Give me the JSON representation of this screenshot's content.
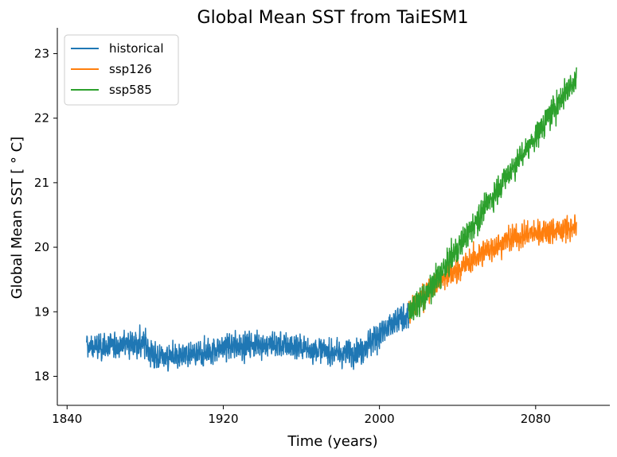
{
  "chart_data": {
    "type": "line",
    "title": "Global Mean SST from TaiESM1",
    "xlabel": "Time (years)",
    "ylabel": "Global Mean SST [$^\\circ$C]",
    "ylabel_display": "Global Mean SST [ ° C]",
    "xlim": [
      1835,
      2118
    ],
    "ylim": [
      17.55,
      23.4
    ],
    "xticks": [
      1840,
      1920,
      2000,
      2080
    ],
    "yticks": [
      18,
      19,
      20,
      21,
      22,
      23
    ],
    "grid": false,
    "legend_position": "top-left",
    "series": [
      {
        "name": "historical",
        "color": "#1f77b4",
        "x_start": 1850,
        "x_end": 2014,
        "anchors": [
          [
            1850,
            18.45
          ],
          [
            1860,
            18.45
          ],
          [
            1870,
            18.5
          ],
          [
            1880,
            18.5
          ],
          [
            1885,
            18.3
          ],
          [
            1900,
            18.3
          ],
          [
            1910,
            18.35
          ],
          [
            1920,
            18.45
          ],
          [
            1940,
            18.5
          ],
          [
            1960,
            18.45
          ],
          [
            1980,
            18.35
          ],
          [
            1990,
            18.4
          ],
          [
            2000,
            18.65
          ],
          [
            2014,
            18.95
          ]
        ],
        "amplitude": 0.18,
        "range": [
          17.82,
          19.25
        ]
      },
      {
        "name": "ssp126",
        "color": "#ff7f0e",
        "x_start": 2015,
        "x_end": 2100,
        "anchors": [
          [
            2015,
            18.95
          ],
          [
            2025,
            19.35
          ],
          [
            2035,
            19.55
          ],
          [
            2045,
            19.75
          ],
          [
            2055,
            19.95
          ],
          [
            2065,
            20.1
          ],
          [
            2075,
            20.2
          ],
          [
            2085,
            20.25
          ],
          [
            2100,
            20.3
          ]
        ],
        "amplitude": 0.17,
        "range": [
          18.6,
          20.82
        ]
      },
      {
        "name": "ssp585",
        "color": "#2ca02c",
        "x_start": 2015,
        "x_end": 2100,
        "anchors": [
          [
            2015,
            19.0
          ],
          [
            2025,
            19.3
          ],
          [
            2035,
            19.75
          ],
          [
            2045,
            20.2
          ],
          [
            2055,
            20.65
          ],
          [
            2065,
            21.1
          ],
          [
            2075,
            21.5
          ],
          [
            2085,
            21.95
          ],
          [
            2095,
            22.4
          ],
          [
            2100,
            22.6
          ]
        ],
        "amplitude": 0.19,
        "range": [
          18.7,
          23.15
        ]
      }
    ]
  }
}
